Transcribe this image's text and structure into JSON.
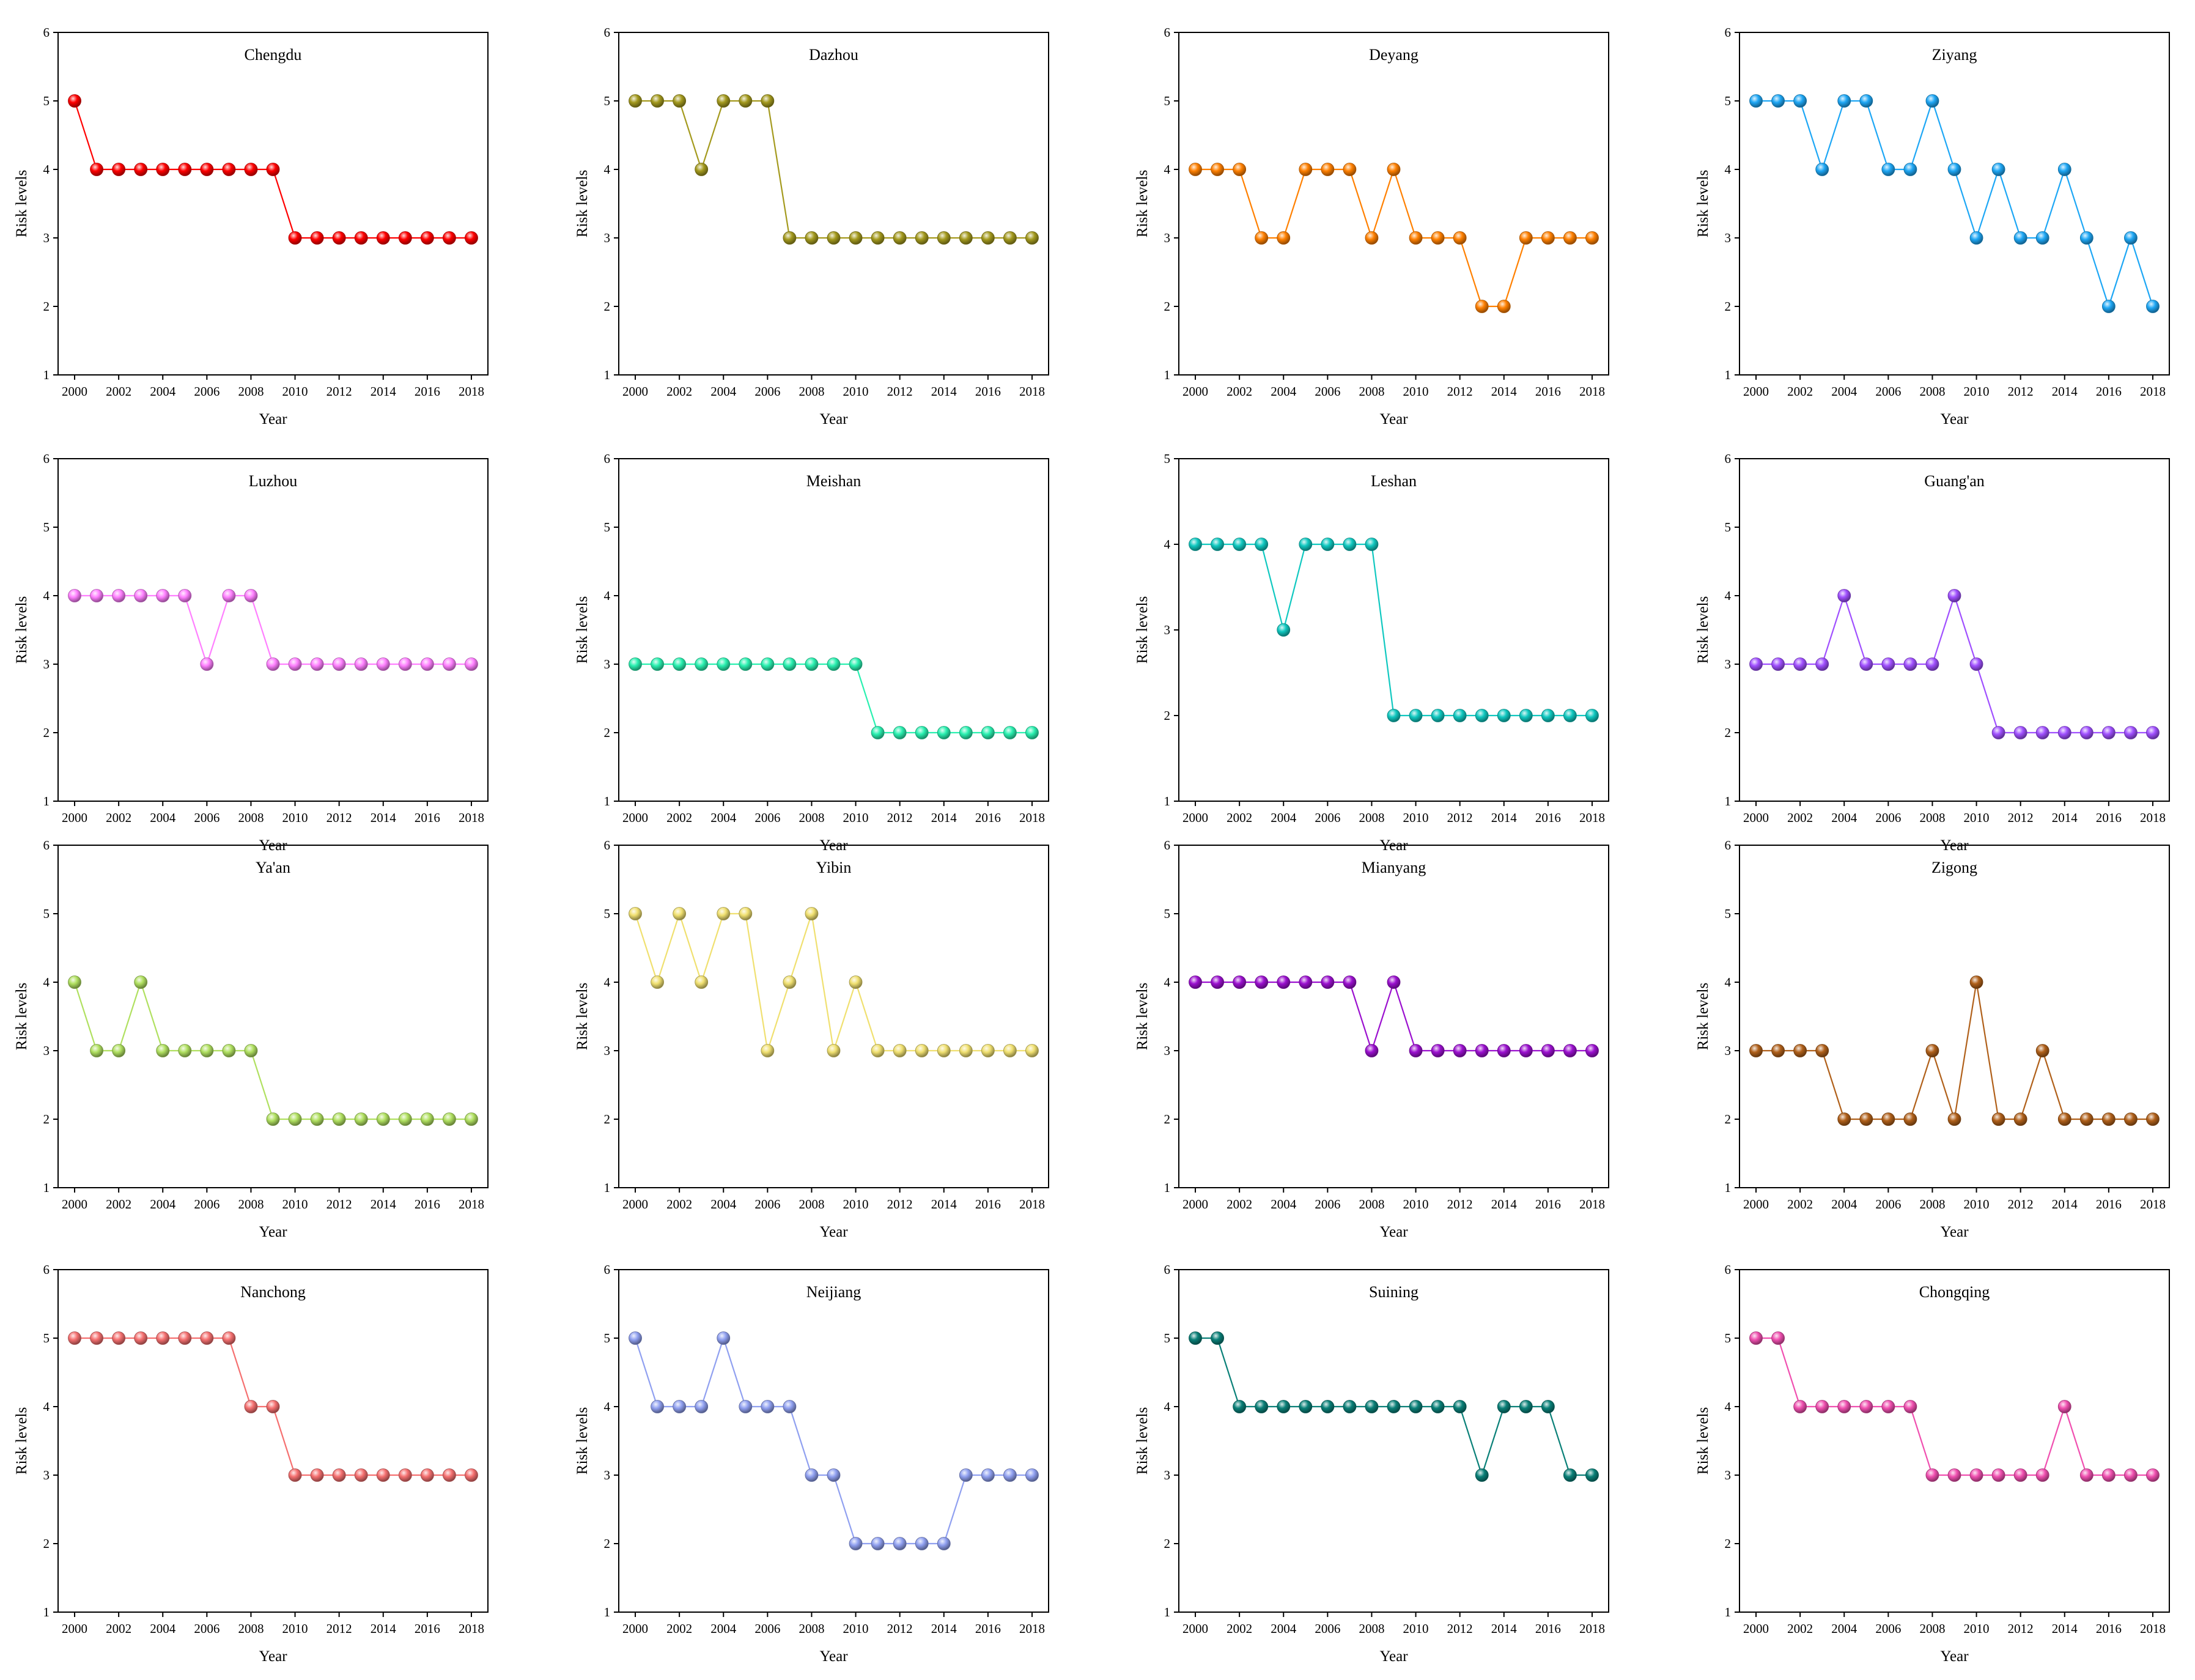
{
  "figure_title": "",
  "chart_data": [
    {
      "type": "line",
      "title": "Chengdu",
      "xlabel": "Year",
      "ylabel": "Risk levels",
      "color": "#ff0000",
      "ylim": [
        1,
        6
      ],
      "x": [
        2000,
        2001,
        2002,
        2003,
        2004,
        2005,
        2006,
        2007,
        2008,
        2009,
        2010,
        2011,
        2012,
        2013,
        2014,
        2015,
        2016,
        2017,
        2018
      ],
      "values": [
        5,
        4,
        4,
        4,
        4,
        4,
        4,
        4,
        4,
        4,
        3,
        3,
        3,
        3,
        3,
        3,
        3,
        3,
        3
      ],
      "xticks": [
        2000,
        2002,
        2004,
        2006,
        2008,
        2010,
        2012,
        2014,
        2016,
        2018
      ],
      "yticks": [
        1,
        2,
        3,
        4,
        5,
        6
      ]
    },
    {
      "type": "line",
      "title": "Dazhou",
      "xlabel": "Year",
      "ylabel": "Risk levels",
      "color": "#a49a1e",
      "ylim": [
        1,
        6
      ],
      "x": [
        2000,
        2001,
        2002,
        2003,
        2004,
        2005,
        2006,
        2007,
        2008,
        2009,
        2010,
        2011,
        2012,
        2013,
        2014,
        2015,
        2016,
        2017,
        2018
      ],
      "values": [
        5,
        5,
        5,
        4,
        5,
        5,
        5,
        3,
        3,
        3,
        3,
        3,
        3,
        3,
        3,
        3,
        3,
        3,
        3
      ],
      "xticks": [
        2000,
        2002,
        2004,
        2006,
        2008,
        2010,
        2012,
        2014,
        2016,
        2018
      ],
      "yticks": [
        1,
        2,
        3,
        4,
        5,
        6
      ]
    },
    {
      "type": "line",
      "title": "Deyang",
      "xlabel": "Year",
      "ylabel": "Risk levels",
      "color": "#ff8000",
      "ylim": [
        1,
        6
      ],
      "x": [
        2000,
        2001,
        2002,
        2003,
        2004,
        2005,
        2006,
        2007,
        2008,
        2009,
        2010,
        2011,
        2012,
        2013,
        2014,
        2015,
        2016,
        2017,
        2018
      ],
      "values": [
        4,
        4,
        4,
        3,
        3,
        4,
        4,
        4,
        3,
        4,
        3,
        3,
        3,
        2,
        2,
        3,
        3,
        3,
        3
      ],
      "xticks": [
        2000,
        2002,
        2004,
        2006,
        2008,
        2010,
        2012,
        2014,
        2016,
        2018
      ],
      "yticks": [
        1,
        2,
        3,
        4,
        5,
        6
      ]
    },
    {
      "type": "line",
      "title": "Ziyang",
      "xlabel": "Year",
      "ylabel": "Risk levels",
      "color": "#1ea7f5",
      "ylim": [
        1,
        6
      ],
      "x": [
        2000,
        2001,
        2002,
        2003,
        2004,
        2005,
        2006,
        2007,
        2008,
        2009,
        2010,
        2011,
        2012,
        2013,
        2014,
        2015,
        2016,
        2017,
        2018
      ],
      "values": [
        5,
        5,
        5,
        4,
        5,
        5,
        4,
        4,
        5,
        4,
        3,
        4,
        3,
        3,
        4,
        3,
        2,
        3,
        2
      ],
      "xticks": [
        2000,
        2002,
        2004,
        2006,
        2008,
        2010,
        2012,
        2014,
        2016,
        2018
      ],
      "yticks": [
        1,
        2,
        3,
        4,
        5,
        6
      ]
    },
    {
      "type": "line",
      "title": "Luzhou",
      "xlabel": "Year",
      "ylabel": "Risk levels",
      "color": "#ff80ff",
      "ylim": [
        1,
        6
      ],
      "x": [
        2000,
        2001,
        2002,
        2003,
        2004,
        2005,
        2006,
        2007,
        2008,
        2009,
        2010,
        2011,
        2012,
        2013,
        2014,
        2015,
        2016,
        2017,
        2018
      ],
      "values": [
        4,
        4,
        4,
        4,
        4,
        4,
        3,
        4,
        4,
        3,
        3,
        3,
        3,
        3,
        3,
        3,
        3,
        3,
        3
      ],
      "xticks": [
        2000,
        2002,
        2004,
        2006,
        2008,
        2010,
        2012,
        2014,
        2016,
        2018
      ],
      "yticks": [
        1,
        2,
        3,
        4,
        5,
        6
      ]
    },
    {
      "type": "line",
      "title": "Meishan",
      "xlabel": "Year",
      "ylabel": "Risk levels",
      "color": "#2af0b0",
      "ylim": [
        1,
        6
      ],
      "x": [
        2000,
        2001,
        2002,
        2003,
        2004,
        2005,
        2006,
        2007,
        2008,
        2009,
        2010,
        2011,
        2012,
        2013,
        2014,
        2015,
        2016,
        2017,
        2018
      ],
      "values": [
        3,
        3,
        3,
        3,
        3,
        3,
        3,
        3,
        3,
        3,
        3,
        2,
        2,
        2,
        2,
        2,
        2,
        2,
        2
      ],
      "xticks": [
        2000,
        2002,
        2004,
        2006,
        2008,
        2010,
        2012,
        2014,
        2016,
        2018
      ],
      "yticks": [
        1,
        2,
        3,
        4,
        5,
        6
      ]
    },
    {
      "type": "line",
      "title": "Leshan",
      "xlabel": "Year",
      "ylabel": "Risk levels",
      "color": "#10c8c0",
      "ylim": [
        1,
        5
      ],
      "x": [
        2000,
        2001,
        2002,
        2003,
        2004,
        2005,
        2006,
        2007,
        2008,
        2009,
        2010,
        2011,
        2012,
        2013,
        2014,
        2015,
        2016,
        2017,
        2018
      ],
      "values": [
        4,
        4,
        4,
        4,
        3,
        4,
        4,
        4,
        4,
        2,
        2,
        2,
        2,
        2,
        2,
        2,
        2,
        2,
        2
      ],
      "xticks": [
        2000,
        2002,
        2004,
        2006,
        2008,
        2010,
        2012,
        2014,
        2016,
        2018
      ],
      "yticks": [
        1,
        2,
        3,
        4,
        5
      ]
    },
    {
      "type": "line",
      "title": "Guang'an",
      "xlabel": "Year",
      "ylabel": "Risk levels",
      "color": "#a050ff",
      "ylim": [
        1,
        6
      ],
      "x": [
        2000,
        2001,
        2002,
        2003,
        2004,
        2005,
        2006,
        2007,
        2008,
        2009,
        2010,
        2011,
        2012,
        2013,
        2014,
        2015,
        2016,
        2017,
        2018
      ],
      "values": [
        3,
        3,
        3,
        3,
        4,
        3,
        3,
        3,
        3,
        4,
        3,
        2,
        2,
        2,
        2,
        2,
        2,
        2,
        2
      ],
      "xticks": [
        2000,
        2002,
        2004,
        2006,
        2008,
        2010,
        2012,
        2014,
        2016,
        2018
      ],
      "yticks": [
        1,
        2,
        3,
        4,
        5,
        6
      ]
    },
    {
      "type": "line",
      "title": "Ya'an",
      "xlabel": "Year",
      "ylabel": "Risk levels",
      "color": "#b0e060",
      "ylim": [
        1,
        6
      ],
      "x": [
        2000,
        2001,
        2002,
        2003,
        2004,
        2005,
        2006,
        2007,
        2008,
        2009,
        2010,
        2011,
        2012,
        2013,
        2014,
        2015,
        2016,
        2017,
        2018
      ],
      "values": [
        4,
        3,
        3,
        4,
        3,
        3,
        3,
        3,
        3,
        2,
        2,
        2,
        2,
        2,
        2,
        2,
        2,
        2,
        2
      ],
      "xticks": [
        2000,
        2002,
        2004,
        2006,
        2008,
        2010,
        2012,
        2014,
        2016,
        2018
      ],
      "yticks": [
        1,
        2,
        3,
        4,
        5,
        6
      ]
    },
    {
      "type": "line",
      "title": "Yibin",
      "xlabel": "Year",
      "ylabel": "Risk levels",
      "color": "#f0e070",
      "ylim": [
        1,
        6
      ],
      "x": [
        2000,
        2001,
        2002,
        2003,
        2004,
        2005,
        2006,
        2007,
        2008,
        2009,
        2010,
        2011,
        2012,
        2013,
        2014,
        2015,
        2016,
        2017,
        2018
      ],
      "values": [
        5,
        4,
        5,
        4,
        5,
        5,
        3,
        4,
        5,
        3,
        4,
        3,
        3,
        3,
        3,
        3,
        3,
        3,
        3
      ],
      "xticks": [
        2000,
        2002,
        2004,
        2006,
        2008,
        2010,
        2012,
        2014,
        2016,
        2018
      ],
      "yticks": [
        1,
        2,
        3,
        4,
        5,
        6
      ]
    },
    {
      "type": "line",
      "title": "Mianyang",
      "xlabel": "Year",
      "ylabel": "Risk levels",
      "color": "#9b10cf",
      "ylim": [
        1,
        6
      ],
      "x": [
        2000,
        2001,
        2002,
        2003,
        2004,
        2005,
        2006,
        2007,
        2008,
        2009,
        2010,
        2011,
        2012,
        2013,
        2014,
        2015,
        2016,
        2017,
        2018
      ],
      "values": [
        4,
        4,
        4,
        4,
        4,
        4,
        4,
        4,
        3,
        4,
        3,
        3,
        3,
        3,
        3,
        3,
        3,
        3,
        3
      ],
      "xticks": [
        2000,
        2002,
        2004,
        2006,
        2008,
        2010,
        2012,
        2014,
        2016,
        2018
      ],
      "yticks": [
        1,
        2,
        3,
        4,
        5,
        6
      ]
    },
    {
      "type": "line",
      "title": "Zigong",
      "xlabel": "Year",
      "ylabel": "Risk levels",
      "color": "#b0601a",
      "ylim": [
        1,
        6
      ],
      "x": [
        2000,
        2001,
        2002,
        2003,
        2004,
        2005,
        2006,
        2007,
        2008,
        2009,
        2010,
        2011,
        2012,
        2013,
        2014,
        2015,
        2016,
        2017,
        2018
      ],
      "values": [
        3,
        3,
        3,
        3,
        2,
        2,
        2,
        2,
        3,
        2,
        4,
        2,
        2,
        3,
        2,
        2,
        2,
        2,
        2
      ],
      "xticks": [
        2000,
        2002,
        2004,
        2006,
        2008,
        2010,
        2012,
        2014,
        2016,
        2018
      ],
      "yticks": [
        1,
        2,
        3,
        4,
        5,
        6
      ]
    },
    {
      "type": "line",
      "title": "Nanchong",
      "xlabel": "Year",
      "ylabel": "Risk levels",
      "color": "#f57070",
      "ylim": [
        1,
        6
      ],
      "x": [
        2000,
        2001,
        2002,
        2003,
        2004,
        2005,
        2006,
        2007,
        2008,
        2009,
        2010,
        2011,
        2012,
        2013,
        2014,
        2015,
        2016,
        2017,
        2018
      ],
      "values": [
        5,
        5,
        5,
        5,
        5,
        5,
        5,
        5,
        4,
        4,
        3,
        3,
        3,
        3,
        3,
        3,
        3,
        3,
        3
      ],
      "xticks": [
        2000,
        2002,
        2004,
        2006,
        2008,
        2010,
        2012,
        2014,
        2016,
        2018
      ],
      "yticks": [
        1,
        2,
        3,
        4,
        5,
        6
      ]
    },
    {
      "type": "line",
      "title": "Neijiang",
      "xlabel": "Year",
      "ylabel": "Risk levels",
      "color": "#90a0f0",
      "ylim": [
        1,
        6
      ],
      "x": [
        2000,
        2001,
        2002,
        2003,
        2004,
        2005,
        2006,
        2007,
        2008,
        2009,
        2010,
        2011,
        2012,
        2013,
        2014,
        2015,
        2016,
        2017,
        2018
      ],
      "values": [
        5,
        4,
        4,
        4,
        5,
        4,
        4,
        4,
        3,
        3,
        2,
        2,
        2,
        2,
        2,
        3,
        3,
        3,
        3
      ],
      "xticks": [
        2000,
        2002,
        2004,
        2006,
        2008,
        2010,
        2012,
        2014,
        2016,
        2018
      ],
      "yticks": [
        1,
        2,
        3,
        4,
        5,
        6
      ]
    },
    {
      "type": "line",
      "title": "Suining",
      "xlabel": "Year",
      "ylabel": "Risk levels",
      "color": "#0a8078",
      "ylim": [
        1,
        6
      ],
      "x": [
        2000,
        2001,
        2002,
        2003,
        2004,
        2005,
        2006,
        2007,
        2008,
        2009,
        2010,
        2011,
        2012,
        2013,
        2014,
        2015,
        2016,
        2017,
        2018
      ],
      "values": [
        5,
        5,
        4,
        4,
        4,
        4,
        4,
        4,
        4,
        4,
        4,
        4,
        4,
        3,
        4,
        4,
        4,
        3,
        3
      ],
      "xticks": [
        2000,
        2002,
        2004,
        2006,
        2008,
        2010,
        2012,
        2014,
        2016,
        2018
      ],
      "yticks": [
        1,
        2,
        3,
        4,
        5,
        6
      ]
    },
    {
      "type": "line",
      "title": "Chongqing",
      "xlabel": "Year",
      "ylabel": "Risk levels",
      "color": "#f050b0",
      "ylim": [
        1,
        6
      ],
      "x": [
        2000,
        2001,
        2002,
        2003,
        2004,
        2005,
        2006,
        2007,
        2008,
        2009,
        2010,
        2011,
        2012,
        2013,
        2014,
        2015,
        2016,
        2017,
        2018
      ],
      "values": [
        5,
        5,
        4,
        4,
        4,
        4,
        4,
        4,
        3,
        3,
        3,
        3,
        3,
        3,
        4,
        3,
        3,
        3,
        3
      ],
      "xticks": [
        2000,
        2002,
        2004,
        2006,
        2008,
        2010,
        2012,
        2014,
        2016,
        2018
      ],
      "yticks": [
        1,
        2,
        3,
        4,
        5,
        6
      ]
    }
  ]
}
